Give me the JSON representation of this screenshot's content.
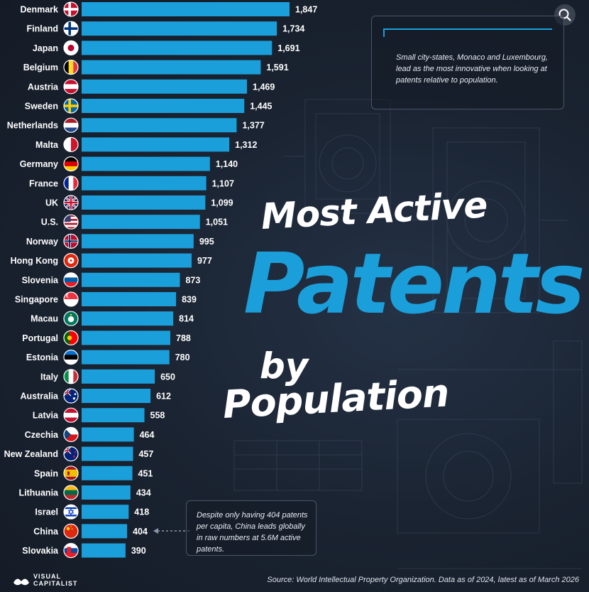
{
  "chart_data": {
    "type": "bar",
    "orientation": "horizontal",
    "title": "Most Active Patents by Population",
    "title_parts": [
      "Most Active",
      "Patents",
      "by",
      "Population"
    ],
    "categories": [
      "Denmark",
      "Finland",
      "Japan",
      "Belgium",
      "Austria",
      "Sweden",
      "Netherlands",
      "Malta",
      "Germany",
      "France",
      "UK",
      "U.S.",
      "Norway",
      "Hong Kong",
      "Slovenia",
      "Singapore",
      "Macau",
      "Portugal",
      "Estonia",
      "Italy",
      "Australia",
      "Latvia",
      "Czechia",
      "New Zealand",
      "Spain",
      "Lithuania",
      "Israel",
      "China",
      "Slovakia"
    ],
    "values": [
      1847,
      1734,
      1691,
      1591,
      1469,
      1445,
      1377,
      1312,
      1140,
      1107,
      1099,
      1051,
      995,
      977,
      873,
      839,
      814,
      788,
      780,
      650,
      612,
      558,
      464,
      457,
      451,
      434,
      418,
      404,
      390
    ],
    "value_labels": [
      "1,847",
      "1,734",
      "1,691",
      "1,591",
      "1,469",
      "1,445",
      "1,377",
      "1,312",
      "1,140",
      "1,107",
      "1,099",
      "1,051",
      "995",
      "977",
      "873",
      "839",
      "814",
      "788",
      "780",
      "650",
      "612",
      "558",
      "464",
      "457",
      "451",
      "434",
      "418",
      "404",
      "390"
    ],
    "flags": [
      "denmark",
      "finland",
      "japan",
      "belgium",
      "austria",
      "sweden",
      "netherlands",
      "malta",
      "germany",
      "france",
      "uk",
      "us",
      "norway",
      "hongkong",
      "slovenia",
      "singapore",
      "macau",
      "portugal",
      "estonia",
      "italy",
      "australia",
      "latvia",
      "czechia",
      "newzealand",
      "spain",
      "lithuania",
      "israel",
      "china",
      "slovakia"
    ],
    "xlabel": "",
    "ylabel": "",
    "xlim": [
      0,
      1847
    ],
    "grid": false,
    "bar_color": "#1b9fdb"
  },
  "annotations": {
    "top": "Small city-states, Monaco and Luxembourg, lead as the most innovative when looking at patents relative to population.",
    "bottom": "Despite only having 404 patents per capita, China leads globally in raw numbers at 5.6M active patents."
  },
  "source": "Source: World Intellectual Property Organization. Data as of 2024, latest as of March 2026",
  "brand": {
    "line1": "VISUAL",
    "line2": "CAPITALIST"
  },
  "colors": {
    "background": "#18202c",
    "accent": "#1b9fdb",
    "text": "#ffffff"
  },
  "icons": {
    "search": "search-icon",
    "logo": "visual-capitalist-logo-icon",
    "arrow": "dashed-arrow-icon"
  }
}
